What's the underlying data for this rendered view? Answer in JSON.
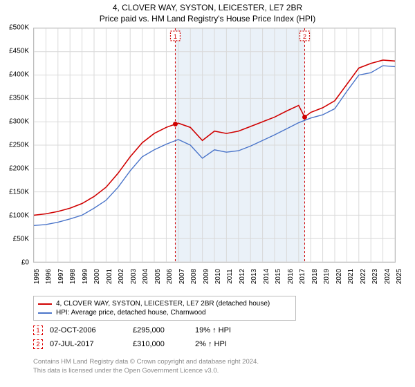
{
  "title_line1": "4, CLOVER WAY, SYSTON, LEICESTER, LE7 2BR",
  "title_line2": "Price paid vs. HM Land Registry's House Price Index (HPI)",
  "chart": {
    "type": "line",
    "background_color": "#ffffff",
    "grid_color": "#d9d9d9",
    "border_color": "#bbbbbb",
    "x_years": [
      1995,
      1996,
      1997,
      1998,
      1999,
      2000,
      2001,
      2002,
      2003,
      2004,
      2005,
      2006,
      2007,
      2008,
      2009,
      2010,
      2011,
      2012,
      2013,
      2014,
      2015,
      2016,
      2017,
      2018,
      2019,
      2020,
      2021,
      2022,
      2023,
      2024,
      2025
    ],
    "x_range": [
      1995,
      2025
    ],
    "y_ticks_k": [
      0,
      50,
      100,
      150,
      200,
      250,
      300,
      350,
      400,
      450,
      500
    ],
    "y_range_k": [
      0,
      500
    ],
    "highlight_band": {
      "x_from": 2006.75,
      "x_to": 2017.5,
      "fill": "#eaf1f8"
    },
    "markers": [
      {
        "n": "1",
        "x": 2006.75,
        "y_k": 295,
        "box_color": "#d00000"
      },
      {
        "n": "2",
        "x": 2017.5,
        "y_k": 310,
        "box_color": "#d00000"
      }
    ],
    "series": [
      {
        "name": "price_paid",
        "label": "4, CLOVER WAY, SYSTON, LEICESTER, LE7 2BR (detached house)",
        "color": "#d00000",
        "width": 1.6,
        "points_k": [
          [
            1995,
            100
          ],
          [
            1996,
            103
          ],
          [
            1997,
            108
          ],
          [
            1998,
            115
          ],
          [
            1999,
            125
          ],
          [
            2000,
            140
          ],
          [
            2001,
            160
          ],
          [
            2002,
            190
          ],
          [
            2003,
            225
          ],
          [
            2004,
            255
          ],
          [
            2005,
            275
          ],
          [
            2006,
            288
          ],
          [
            2006.75,
            295
          ],
          [
            2007,
            297
          ],
          [
            2008,
            288
          ],
          [
            2009,
            260
          ],
          [
            2010,
            280
          ],
          [
            2011,
            275
          ],
          [
            2012,
            280
          ],
          [
            2013,
            290
          ],
          [
            2014,
            300
          ],
          [
            2015,
            310
          ],
          [
            2016,
            323
          ],
          [
            2017,
            335
          ],
          [
            2017.5,
            310
          ],
          [
            2018,
            320
          ],
          [
            2019,
            330
          ],
          [
            2020,
            345
          ],
          [
            2021,
            380
          ],
          [
            2022,
            415
          ],
          [
            2023,
            425
          ],
          [
            2024,
            432
          ],
          [
            2025,
            430
          ]
        ]
      },
      {
        "name": "hpi",
        "label": "HPI: Average price, detached house, Charnwood",
        "color": "#4a74c9",
        "width": 1.4,
        "points_k": [
          [
            1995,
            78
          ],
          [
            1996,
            80
          ],
          [
            1997,
            85
          ],
          [
            1998,
            92
          ],
          [
            1999,
            100
          ],
          [
            2000,
            115
          ],
          [
            2001,
            132
          ],
          [
            2002,
            160
          ],
          [
            2003,
            195
          ],
          [
            2004,
            225
          ],
          [
            2005,
            240
          ],
          [
            2006,
            252
          ],
          [
            2007,
            262
          ],
          [
            2008,
            250
          ],
          [
            2009,
            222
          ],
          [
            2010,
            240
          ],
          [
            2011,
            235
          ],
          [
            2012,
            238
          ],
          [
            2013,
            248
          ],
          [
            2014,
            260
          ],
          [
            2015,
            272
          ],
          [
            2016,
            285
          ],
          [
            2017,
            298
          ],
          [
            2018,
            308
          ],
          [
            2019,
            315
          ],
          [
            2020,
            328
          ],
          [
            2021,
            365
          ],
          [
            2022,
            400
          ],
          [
            2023,
            405
          ],
          [
            2024,
            420
          ],
          [
            2025,
            418
          ]
        ]
      }
    ]
  },
  "legend": {
    "border_color": "#bbbbbb",
    "rows": [
      {
        "color": "#d00000",
        "label": "4, CLOVER WAY, SYSTON, LEICESTER, LE7 2BR (detached house)"
      },
      {
        "color": "#4a74c9",
        "label": "HPI: Average price, detached house, Charnwood"
      }
    ]
  },
  "marker_table": [
    {
      "n": "1",
      "date": "02-OCT-2006",
      "price": "£295,000",
      "pct": "19% ↑ HPI"
    },
    {
      "n": "2",
      "date": "07-JUL-2017",
      "price": "£310,000",
      "pct": "2% ↑ HPI"
    }
  ],
  "footer_line1": "Contains HM Land Registry data © Crown copyright and database right 2024.",
  "footer_line2": "This data is licensed under the Open Government Licence v3.0.",
  "tick_font_size": 10,
  "title_font_size": 12,
  "footer_color": "#888888"
}
